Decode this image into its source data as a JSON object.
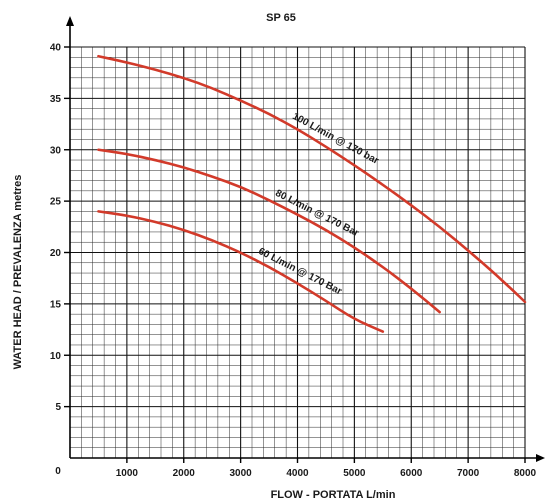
{
  "chart_data": {
    "type": "line",
    "title": "SP 65",
    "xlabel": "FLOW  - PORTATA  L/min",
    "ylabel": "WATER HEAD / PREVALENZA metres",
    "xlim": [
      0,
      8000
    ],
    "ylim": [
      0,
      40
    ],
    "x_ticks": [
      1000,
      2000,
      3000,
      4000,
      5000,
      6000,
      7000,
      8000
    ],
    "y_ticks": [
      5,
      10,
      15,
      20,
      25,
      30,
      35,
      40
    ],
    "origin_label": "0",
    "grid": true,
    "line_color": "#d23a2a",
    "series": [
      {
        "name": "100 L/min @ 170 bar",
        "x": [
          500,
          1000,
          1500,
          2000,
          2500,
          3000,
          3500,
          4000,
          4500,
          5000,
          5500,
          6000,
          6500,
          7000,
          7500,
          8000
        ],
        "y": [
          39.1,
          38.5,
          37.8,
          37.0,
          36.0,
          34.8,
          33.5,
          32.0,
          30.3,
          28.5,
          26.6,
          24.6,
          22.5,
          20.2,
          17.8,
          15.2
        ]
      },
      {
        "name": "80 L/min @ 170 Bar",
        "x": [
          500,
          1000,
          1500,
          2000,
          2500,
          3000,
          3500,
          4000,
          4500,
          5000,
          5500,
          6000,
          6500
        ],
        "y": [
          30.0,
          29.6,
          29.0,
          28.3,
          27.4,
          26.4,
          25.1,
          23.7,
          22.2,
          20.5,
          18.6,
          16.5,
          14.2
        ]
      },
      {
        "name": "60 L/min @ 170 Bar",
        "x": [
          500,
          1000,
          1500,
          2000,
          2500,
          3000,
          3500,
          4000,
          4500,
          5000,
          5500
        ],
        "y": [
          24.0,
          23.6,
          23.0,
          22.2,
          21.2,
          20.0,
          18.6,
          17.0,
          15.3,
          13.5,
          12.3
        ]
      }
    ]
  }
}
